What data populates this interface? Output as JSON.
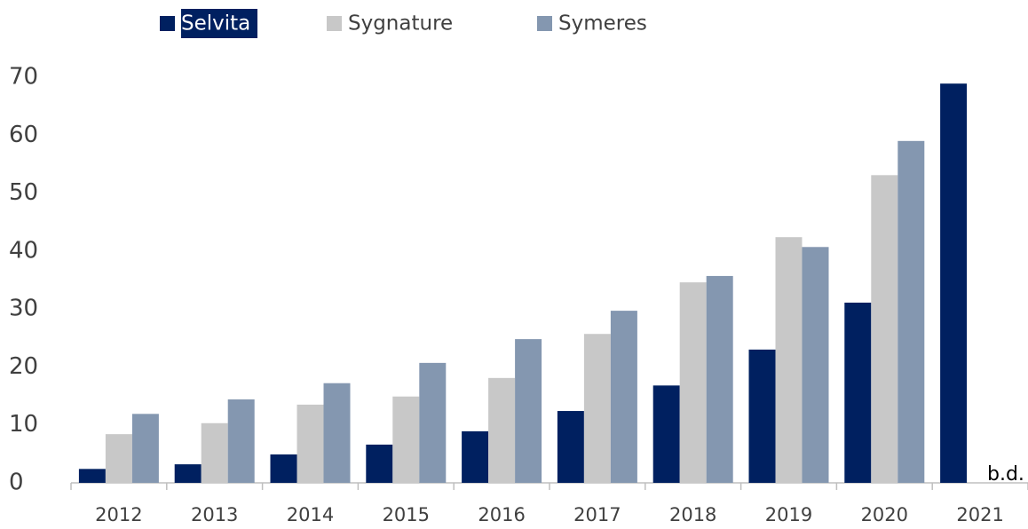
{
  "chart_data": {
    "type": "bar",
    "categories": [
      "2012",
      "2013",
      "2014",
      "2015",
      "2016",
      "2017",
      "2018",
      "2019",
      "2020",
      "2021"
    ],
    "series": [
      {
        "name": "Selvita",
        "color": "#002060",
        "values": [
          2.4,
          3.2,
          4.9,
          6.6,
          8.9,
          12.4,
          16.8,
          23.0,
          31.1,
          68.9
        ]
      },
      {
        "name": "Sygnature",
        "color": "#c8c8c8",
        "values": [
          8.4,
          10.3,
          13.5,
          14.9,
          18.1,
          25.7,
          34.6,
          42.4,
          53.1,
          null
        ]
      },
      {
        "name": "Symeres",
        "color": "#8497b0",
        "values": [
          11.9,
          14.4,
          17.2,
          20.7,
          24.8,
          29.7,
          35.7,
          40.7,
          59.0,
          null
        ]
      }
    ],
    "annotation": "b.d.",
    "ylim": [
      0,
      70
    ],
    "yticks": [
      0,
      10,
      20,
      30,
      40,
      50,
      60,
      70
    ],
    "grid": false,
    "legend": "top"
  }
}
